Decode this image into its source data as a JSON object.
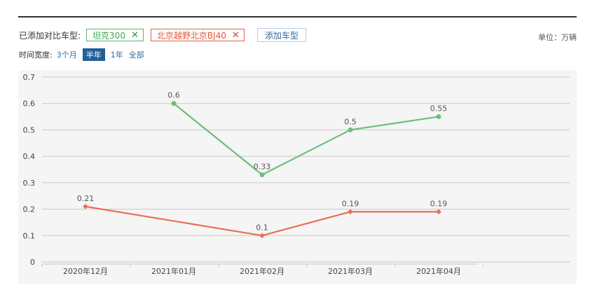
{
  "header": {
    "compare_label": "已添加对比车型:",
    "tags": [
      {
        "label": "坦克300",
        "close": "✕",
        "color": "#58b866"
      },
      {
        "label": "北京越野北京BJ40",
        "close": "✕",
        "color": "#e06548"
      }
    ],
    "add_button": "添加车型",
    "unit": "单位：万辆"
  },
  "time_range": {
    "label": "时间宽度:",
    "options": [
      "3个月",
      "半年",
      "1年",
      "全部"
    ],
    "selected": "半年"
  },
  "chart_data": {
    "type": "line",
    "categories": [
      "2020年12月",
      "2021年01月",
      "2021年02月",
      "2021年03月",
      "2021年04月"
    ],
    "ylim": [
      0,
      0.7
    ],
    "yticks": [
      "0",
      "0.1",
      "0.2",
      "0.3",
      "0.4",
      "0.5",
      "0.6",
      "0.7"
    ],
    "grid": true,
    "series": [
      {
        "name": "坦克300",
        "color": "#6dbf7a",
        "values": [
          null,
          0.6,
          0.33,
          0.5,
          0.55
        ],
        "labels": [
          "",
          "0.6",
          "0.33",
          "0.5",
          "0.55"
        ]
      },
      {
        "name": "北京越野北京BJ40",
        "color": "#e86f55",
        "values": [
          0.21,
          null,
          0.1,
          0.19,
          0.19
        ],
        "labels": [
          "0.21",
          "",
          "0.1",
          "0.19",
          "0.19"
        ]
      }
    ]
  }
}
